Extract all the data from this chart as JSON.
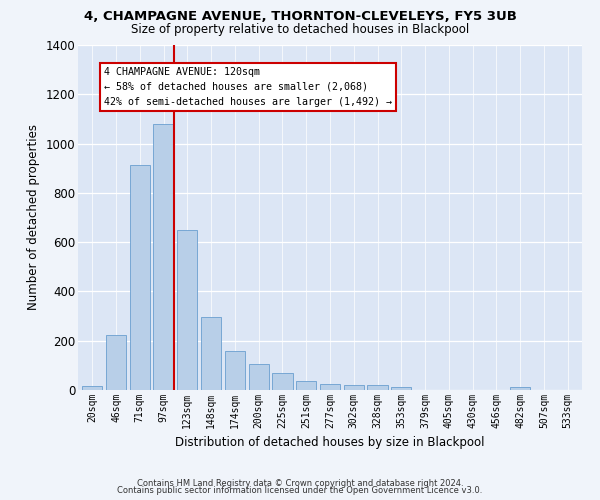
{
  "title1": "4, CHAMPAGNE AVENUE, THORNTON-CLEVELEYS, FY5 3UB",
  "title2": "Size of property relative to detached houses in Blackpool",
  "xlabel": "Distribution of detached houses by size in Blackpool",
  "ylabel": "Number of detached properties",
  "footnote1": "Contains HM Land Registry data © Crown copyright and database right 2024.",
  "footnote2": "Contains public sector information licensed under the Open Government Licence v3.0.",
  "bar_labels": [
    "20sqm",
    "46sqm",
    "71sqm",
    "97sqm",
    "123sqm",
    "148sqm",
    "174sqm",
    "200sqm",
    "225sqm",
    "251sqm",
    "277sqm",
    "302sqm",
    "328sqm",
    "353sqm",
    "379sqm",
    "405sqm",
    "430sqm",
    "456sqm",
    "482sqm",
    "507sqm",
    "533sqm"
  ],
  "bar_values": [
    15,
    225,
    915,
    1080,
    650,
    295,
    160,
    105,
    70,
    37,
    25,
    22,
    20,
    12,
    0,
    0,
    0,
    0,
    12,
    0,
    0
  ],
  "bar_color": "#b8cfe8",
  "bar_edge_color": "#6a9fd0",
  "annotation_title": "4 CHAMPAGNE AVENUE: 120sqm",
  "annotation_line1": "← 58% of detached houses are smaller (2,068)",
  "annotation_line2": "42% of semi-detached houses are larger (1,492) →",
  "vline_color": "#cc0000",
  "annotation_box_edge": "#cc0000",
  "ylim": [
    0,
    1400
  ],
  "yticks": [
    0,
    200,
    400,
    600,
    800,
    1000,
    1200,
    1400
  ],
  "fig_background": "#f0f4fa",
  "plot_background": "#dce6f5"
}
